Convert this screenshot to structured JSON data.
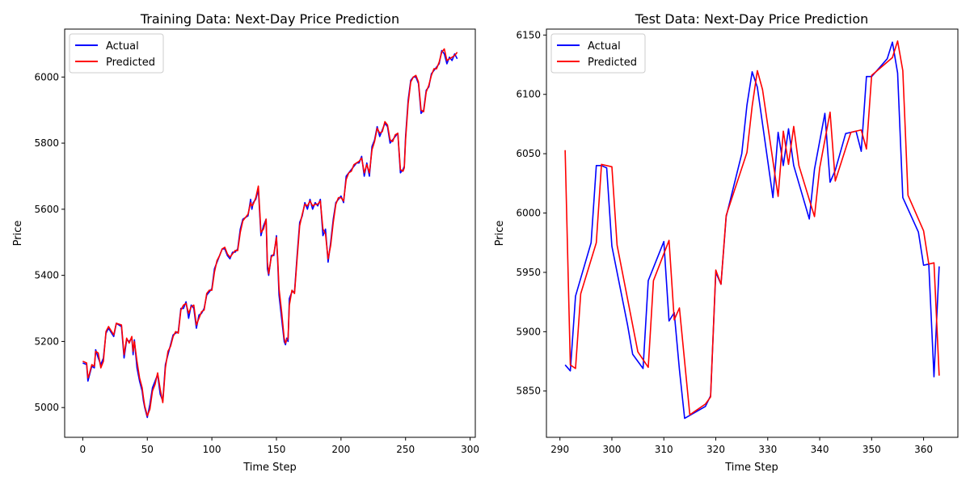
{
  "chart_data": [
    {
      "type": "line",
      "title": "Training Data: Next-Day Price Prediction",
      "xlabel": "Time Step",
      "ylabel": "Price",
      "xlim": [
        -14,
        304
      ],
      "ylim": [
        4910,
        6145
      ],
      "xticks": [
        0,
        50,
        100,
        150,
        200,
        250,
        300
      ],
      "yticks": [
        5000,
        5200,
        5400,
        5600,
        5800,
        6000
      ],
      "grid": false,
      "legend_position": "top-left",
      "series": [
        {
          "name": "Actual",
          "color": "#0000ff",
          "x": [
            0,
            3,
            4,
            5,
            7,
            9,
            10,
            12,
            14,
            16,
            18,
            20,
            24,
            26,
            30,
            32,
            34,
            36,
            38,
            39,
            40,
            42,
            44,
            46,
            47,
            48,
            50,
            52,
            54,
            56,
            58,
            60,
            62,
            64,
            66,
            68,
            70,
            72,
            74,
            76,
            78,
            80,
            82,
            84,
            86,
            88,
            90,
            92,
            94,
            96,
            98,
            100,
            102,
            104,
            106,
            108,
            110,
            112,
            114,
            116,
            118,
            120,
            122,
            124,
            128,
            130,
            131,
            132,
            134,
            136,
            138,
            140,
            142,
            143,
            144,
            146,
            148,
            150,
            151,
            152,
            154,
            156,
            157,
            158,
            159,
            160,
            162,
            164,
            166,
            168,
            170,
            172,
            174,
            176,
            178,
            180,
            182,
            184,
            186,
            188,
            190,
            192,
            194,
            196,
            198,
            200,
            202,
            204,
            206,
            208,
            210,
            212,
            214,
            216,
            218,
            220,
            222,
            224,
            226,
            228,
            230,
            232,
            234,
            236,
            238,
            240,
            242,
            244,
            246,
            248,
            249,
            250,
            252,
            254,
            256,
            258,
            260,
            262,
            264,
            266,
            268,
            270,
            272,
            274,
            276,
            278,
            280,
            282,
            284,
            286,
            288,
            290
          ],
          "y": [
            5135,
            5130,
            5080,
            5095,
            5125,
            5120,
            5175,
            5150,
            5130,
            5150,
            5225,
            5240,
            5215,
            5255,
            5245,
            5150,
            5205,
            5200,
            5210,
            5160,
            5205,
            5120,
            5080,
            5050,
            5020,
            5000,
            4970,
            5010,
            5060,
            5080,
            5100,
            5040,
            5020,
            5130,
            5160,
            5190,
            5220,
            5225,
            5230,
            5300,
            5300,
            5320,
            5270,
            5310,
            5300,
            5240,
            5280,
            5285,
            5300,
            5340,
            5350,
            5360,
            5420,
            5440,
            5460,
            5480,
            5480,
            5460,
            5450,
            5470,
            5470,
            5480,
            5540,
            5570,
            5580,
            5630,
            5600,
            5620,
            5630,
            5660,
            5520,
            5550,
            5570,
            5420,
            5400,
            5460,
            5460,
            5520,
            5440,
            5340,
            5270,
            5200,
            5190,
            5210,
            5200,
            5330,
            5350,
            5350,
            5460,
            5560,
            5580,
            5620,
            5600,
            5630,
            5600,
            5620,
            5610,
            5630,
            5520,
            5540,
            5440,
            5500,
            5570,
            5620,
            5630,
            5640,
            5620,
            5700,
            5710,
            5720,
            5730,
            5740,
            5740,
            5760,
            5700,
            5740,
            5700,
            5790,
            5810,
            5850,
            5820,
            5840,
            5860,
            5850,
            5800,
            5810,
            5820,
            5830,
            5710,
            5720,
            5730,
            5820,
            5930,
            5990,
            6000,
            6000,
            5980,
            5890,
            5900,
            5960,
            5970,
            6010,
            6020,
            6030,
            6040,
            6080,
            6070,
            6040,
            6060,
            6050,
            6070,
            6055
          ]
        },
        {
          "name": "Predicted",
          "color": "#ff0000",
          "x": [
            0,
            3,
            4,
            5,
            7,
            9,
            10,
            12,
            14,
            16,
            18,
            20,
            24,
            26,
            30,
            32,
            34,
            36,
            38,
            39,
            40,
            42,
            44,
            46,
            47,
            48,
            50,
            52,
            54,
            56,
            58,
            60,
            62,
            64,
            66,
            68,
            70,
            72,
            74,
            76,
            78,
            80,
            82,
            84,
            86,
            88,
            90,
            92,
            94,
            96,
            98,
            100,
            102,
            104,
            106,
            108,
            110,
            112,
            114,
            116,
            118,
            120,
            122,
            124,
            128,
            130,
            131,
            132,
            134,
            136,
            138,
            140,
            142,
            143,
            144,
            146,
            148,
            150,
            151,
            152,
            154,
            156,
            157,
            158,
            159,
            160,
            162,
            164,
            166,
            168,
            170,
            172,
            174,
            176,
            178,
            180,
            182,
            184,
            186,
            188,
            190,
            192,
            194,
            196,
            198,
            200,
            202,
            204,
            206,
            208,
            210,
            212,
            214,
            216,
            218,
            220,
            222,
            224,
            226,
            228,
            230,
            232,
            234,
            236,
            238,
            240,
            242,
            244,
            246,
            248,
            249,
            250,
            252,
            254,
            256,
            258,
            260,
            262,
            264,
            266,
            268,
            270,
            272,
            274,
            276,
            278,
            280,
            282,
            284,
            286,
            288,
            290
          ],
          "y": [
            5140,
            5135,
            5090,
            5100,
            5130,
            5125,
            5170,
            5165,
            5120,
            5140,
            5230,
            5245,
            5220,
            5255,
            5250,
            5160,
            5210,
            5195,
            5215,
            5170,
            5200,
            5140,
            5090,
            5060,
            5030,
            5005,
            4975,
            4995,
            5050,
            5070,
            5105,
            5055,
            5015,
            5120,
            5170,
            5185,
            5215,
            5230,
            5225,
            5295,
            5310,
            5315,
            5285,
            5305,
            5310,
            5250,
            5270,
            5290,
            5295,
            5345,
            5355,
            5355,
            5410,
            5445,
            5460,
            5480,
            5485,
            5465,
            5455,
            5465,
            5475,
            5475,
            5530,
            5565,
            5585,
            5620,
            5610,
            5615,
            5635,
            5670,
            5530,
            5540,
            5570,
            5440,
            5405,
            5455,
            5465,
            5515,
            5450,
            5360,
            5290,
            5210,
            5195,
            5205,
            5210,
            5310,
            5355,
            5345,
            5450,
            5550,
            5585,
            5615,
            5610,
            5625,
            5610,
            5615,
            5615,
            5625,
            5540,
            5525,
            5450,
            5490,
            5560,
            5615,
            5635,
            5635,
            5625,
            5690,
            5710,
            5715,
            5735,
            5740,
            5745,
            5755,
            5710,
            5735,
            5710,
            5780,
            5805,
            5845,
            5830,
            5835,
            5865,
            5855,
            5810,
            5805,
            5825,
            5830,
            5720,
            5715,
            5725,
            5810,
            5920,
            5985,
            6000,
            6005,
            5985,
            5900,
            5895,
            5955,
            5975,
            6005,
            6025,
            6025,
            6045,
            6075,
            6085,
            6050,
            6055,
            6060,
            6065,
            6075
          ]
        }
      ]
    },
    {
      "type": "line",
      "title": "Test Data: Next-Day Price Prediction",
      "xlabel": "Time Step",
      "ylabel": "Price",
      "xlim": [
        287.4,
        366.6
      ],
      "ylim": [
        5811,
        6155
      ],
      "xticks": [
        290,
        300,
        310,
        320,
        330,
        340,
        350,
        360
      ],
      "yticks": [
        5850,
        5900,
        5950,
        6000,
        6050,
        6100,
        6150
      ],
      "grid": false,
      "legend_position": "top-left",
      "series": [
        {
          "name": "Actual",
          "color": "#0000ff",
          "x": [
            291,
            292,
            293,
            296,
            297,
            298,
            299,
            300,
            303,
            304,
            306,
            307,
            310,
            311,
            312,
            313,
            314,
            318,
            319,
            320,
            321,
            322,
            325,
            326,
            327,
            328,
            331,
            332,
            333,
            334,
            335,
            338,
            339,
            341,
            342,
            343,
            345,
            346,
            347,
            348,
            349,
            350,
            353,
            354,
            355,
            356,
            359,
            360,
            361,
            362,
            363
          ],
          "y": [
            5872,
            5867,
            5930,
            5975,
            6040,
            6040,
            6038,
            5972,
            5906,
            5881,
            5869,
            5943,
            5976,
            5909,
            5916,
            5868,
            5827,
            5837,
            5846,
            5950,
            5940,
            5997,
            6050,
            6091,
            6119,
            6106,
            6013,
            6068,
            6040,
            6071,
            6040,
            5995,
            6037,
            6084,
            6026,
            6036,
            6067,
            6068,
            6069,
            6052,
            6115,
            6115,
            6130,
            6144,
            6118,
            6013,
            5984,
            5956,
            5957,
            5862,
            5955
          ]
        },
        {
          "name": "Predicted",
          "color": "#ff0000",
          "x": [
            291,
            292,
            293,
            294,
            297,
            298,
            300,
            301,
            305,
            307,
            308,
            311,
            312,
            313,
            315,
            318,
            319,
            320,
            321,
            322,
            326,
            327,
            328,
            329,
            332,
            333,
            334,
            335,
            336,
            339,
            340,
            342,
            343,
            346,
            348,
            349,
            350,
            354,
            355,
            356,
            357,
            360,
            361,
            362,
            363
          ],
          "y": [
            6053,
            5872,
            5869,
            5932,
            5975,
            6041,
            6039,
            5973,
            5883,
            5870,
            5943,
            5977,
            5910,
            5920,
            5830,
            5839,
            5845,
            5952,
            5940,
            5998,
            6051,
            6090,
            6120,
            6104,
            6014,
            6069,
            6041,
            6073,
            6040,
            5997,
            6038,
            6085,
            6027,
            6068,
            6070,
            6054,
            6116,
            6131,
            6145,
            6120,
            6015,
            5985,
            5957,
            5958,
            5863
          ]
        }
      ]
    }
  ]
}
